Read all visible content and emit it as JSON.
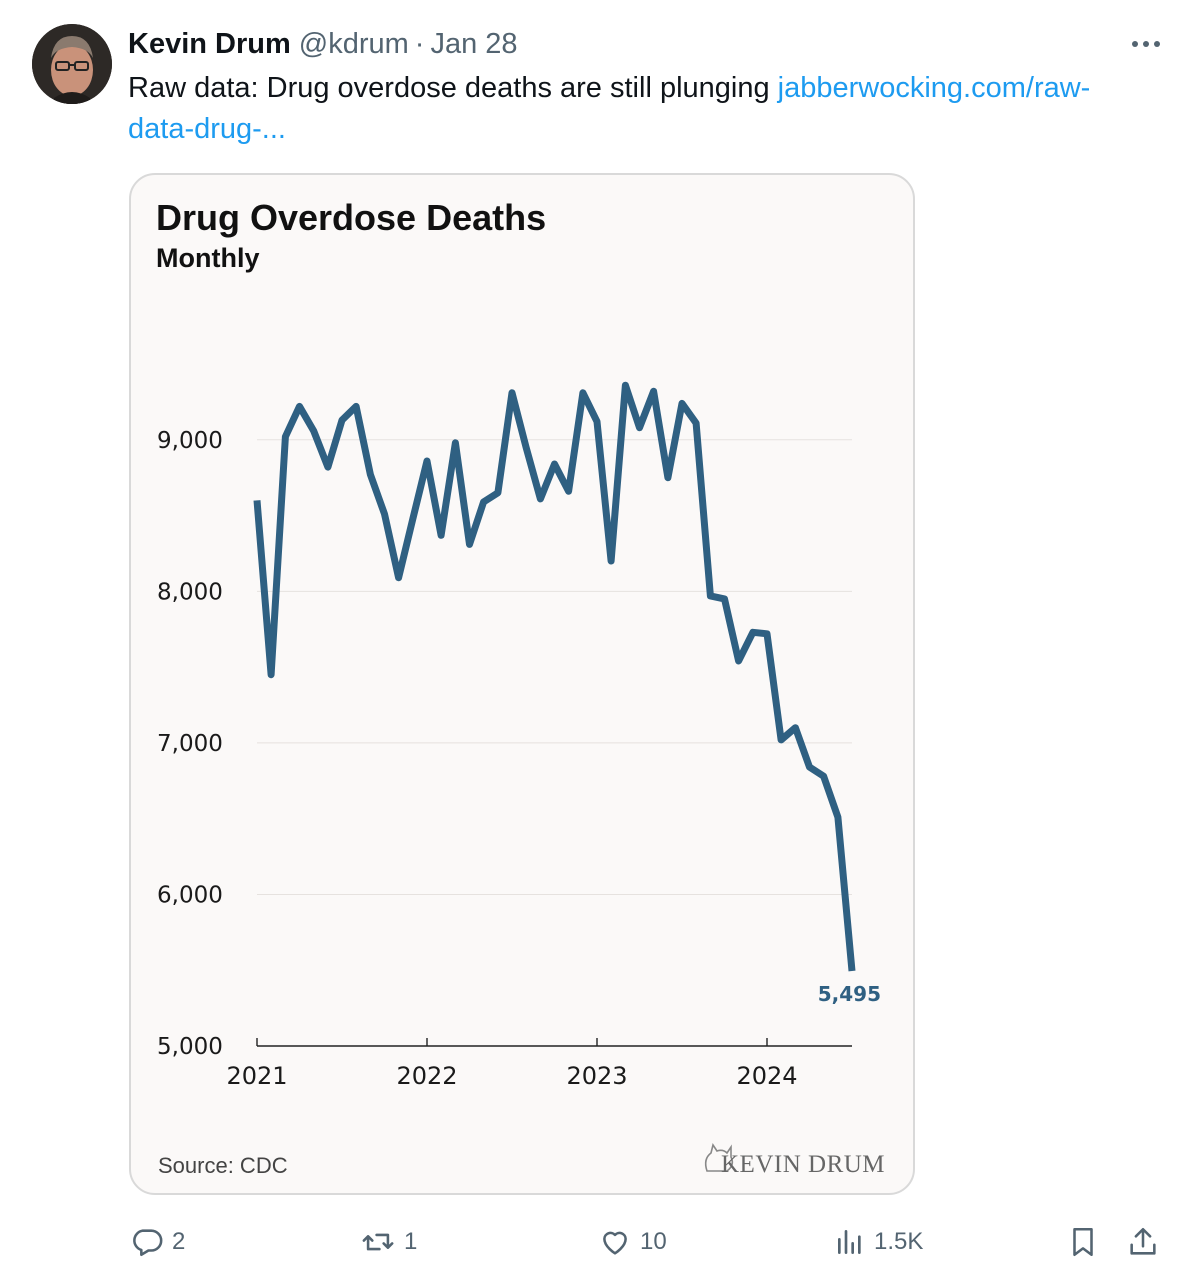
{
  "tweet": {
    "author": "Kevin Drum",
    "handle": "@kdrum",
    "separator": "·",
    "date": "Jan 28",
    "text": "Raw data: Drug overdose deaths are still plunging ",
    "link_line1": "jabberwocking.com/raw-",
    "link_line2": "data-drug-..."
  },
  "card": {
    "source": "Source: CDC",
    "brand": "KEVIN DRUM"
  },
  "actions": {
    "replies": "2",
    "reposts": "1",
    "likes": "10",
    "views": "1.5K"
  },
  "colors": {
    "line": "#2f6082",
    "link": "#1d9bf0",
    "muted": "#536471"
  },
  "icons": [
    "more-icon",
    "reply-icon",
    "repost-icon",
    "like-icon",
    "views-icon",
    "bookmark-icon",
    "share-icon"
  ],
  "chart_data": {
    "type": "line",
    "title": "Drug Overdose Deaths",
    "subtitle": "Monthly",
    "xlabel": "",
    "ylabel": "",
    "ylim": [
      5000,
      9500
    ],
    "yticks": [
      5000,
      6000,
      7000,
      8000,
      9000
    ],
    "ytick_labels": [
      "5,000",
      "6,000",
      "7,000",
      "8,000",
      "9,000"
    ],
    "xticks": [
      2021,
      2022,
      2023,
      2024
    ],
    "xtick_labels": [
      "2021",
      "2022",
      "2023",
      "2024"
    ],
    "grid": true,
    "series": [
      {
        "x": [
          2021.0,
          2021.083,
          2021.167,
          2021.25,
          2021.333,
          2021.417,
          2021.5,
          2021.583,
          2021.667,
          2021.75,
          2021.833,
          2021.917,
          2022.0,
          2022.083,
          2022.167,
          2022.25,
          2022.333,
          2022.417,
          2022.5,
          2022.583,
          2022.667,
          2022.75,
          2022.833,
          2022.917,
          2023.0,
          2023.083,
          2023.167,
          2023.25,
          2023.333,
          2023.417,
          2023.5,
          2023.583,
          2023.667,
          2023.75,
          2023.833,
          2023.917,
          2024.0,
          2024.083,
          2024.167,
          2024.25,
          2024.333,
          2024.417,
          2024.5
        ],
        "values": [
          8600,
          7450,
          9020,
          9220,
          9060,
          8820,
          9130,
          9220,
          8770,
          8510,
          8090,
          8480,
          8860,
          8370,
          8980,
          8310,
          8590,
          8650,
          9310,
          8950,
          8610,
          8840,
          8660,
          9310,
          9120,
          8200,
          9360,
          9080,
          9320,
          8750,
          9240,
          9110,
          7970,
          7950,
          7540,
          7730,
          7720,
          7020,
          7100,
          6840,
          6780,
          6510,
          5495
        ]
      }
    ],
    "annotations": [
      "5,495"
    ]
  }
}
